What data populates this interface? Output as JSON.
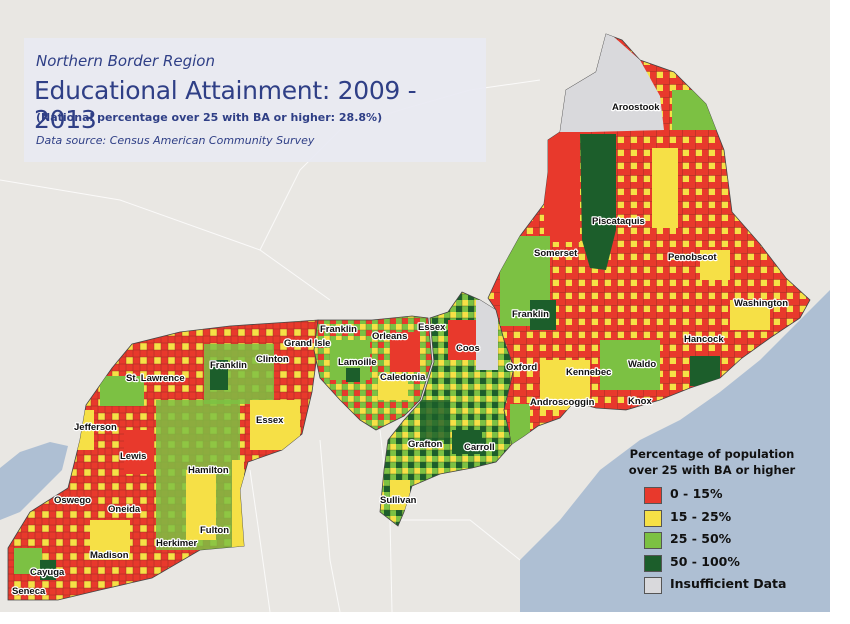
{
  "title": {
    "subtitle": "Northern Border Region",
    "main": "Educational Attainment: 2009 - 2013",
    "note": "(National percentage over 25 with BA or higher: 28.8%)",
    "source": "Data source: Census American Community Survey"
  },
  "legend": {
    "title_line1": "Percentage of population",
    "title_line2": "over 25 with BA or higher",
    "items": [
      {
        "label": "0 - 15%",
        "color": "#e8392c"
      },
      {
        "label": "15 - 25%",
        "color": "#f6e046"
      },
      {
        "label": "25 - 50%",
        "color": "#7cc143"
      },
      {
        "label": "50 - 100%",
        "color": "#1c5e2b"
      },
      {
        "label": "Insufficient Data",
        "color": "#d9d9dc"
      }
    ]
  },
  "counties": {
    "aroostook": "Aroostook",
    "piscataquis": "Piscataquis",
    "somerset": "Somerset",
    "penobscot": "Penobscot",
    "washington": "Washington",
    "hancock": "Hancock",
    "waldo": "Waldo",
    "knox": "Knox",
    "kennebec": "Kennebec",
    "androscoggin": "Androscoggin",
    "oxford": "Oxford",
    "franklin_me": "Franklin",
    "coos": "Coos",
    "grafton": "Grafton",
    "carroll": "Carroll",
    "sullivan": "Sullivan",
    "essex_vt": "Essex",
    "orleans": "Orleans",
    "franklin_vt": "Franklin",
    "grand_isle": "Grand Isle",
    "lamoille": "Lamoille",
    "caledonia": "Caledonia",
    "clinton": "Clinton",
    "franklin_ny": "Franklin",
    "essex_ny": "Essex",
    "st_lawrence": "St. Lawrence",
    "jefferson": "Jefferson",
    "lewis": "Lewis",
    "hamilton": "Hamilton",
    "oswego": "Oswego",
    "oneida": "Oneida",
    "herkimer": "Herkimer",
    "fulton": "Fulton",
    "madison": "Madison",
    "cayuga": "Cayuga",
    "seneca": "Seneca"
  },
  "colors": {
    "low": "#e8392c",
    "mid": "#f6e046",
    "high": "#7cc143",
    "top": "#1c5e2b",
    "na": "#d9d9dc",
    "background": "#e9e7e3",
    "water": "#aebfd3"
  }
}
